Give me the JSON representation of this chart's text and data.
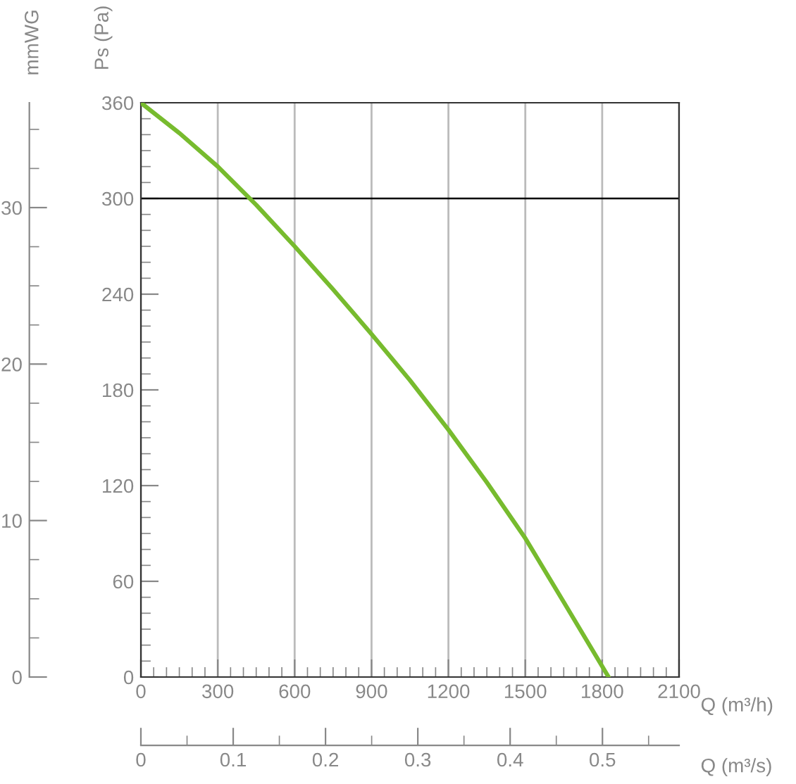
{
  "chart_data": {
    "type": "line",
    "x": [
      0,
      150,
      300,
      450,
      600,
      750,
      900,
      1050,
      1200,
      1350,
      1500,
      1650,
      1825
    ],
    "series": [
      {
        "color": "#77bb2e",
        "values": [
          360,
          341,
          320,
          296,
          270,
          243,
          215,
          186,
          155,
          122,
          87,
          47,
          0
        ]
      }
    ],
    "xlabel": "Q (m³/h)",
    "ylabel": "Ps (Pa)",
    "y2label": "mmWG",
    "x2label": "Q (m³/s)",
    "xlim": [
      0,
      2100
    ],
    "xticks": [
      0,
      300,
      600,
      900,
      1200,
      1500,
      1800,
      2100
    ],
    "ylim": [
      0,
      360
    ],
    "yticks": [
      0,
      60,
      120,
      180,
      240,
      300,
      360
    ],
    "y2lim": [
      0,
      36.7
    ],
    "y2ticks": [
      0,
      10,
      20,
      30
    ],
    "x2lim": [
      0,
      0.583
    ],
    "x2ticks": [
      0,
      0.1,
      0.2,
      0.3,
      0.4,
      0.5
    ],
    "ref_lines": [
      {
        "axis": "y",
        "value": 300,
        "color": "#000000"
      }
    ],
    "grid": "x",
    "marker": "none",
    "line_style": "solid",
    "legend": false
  }
}
